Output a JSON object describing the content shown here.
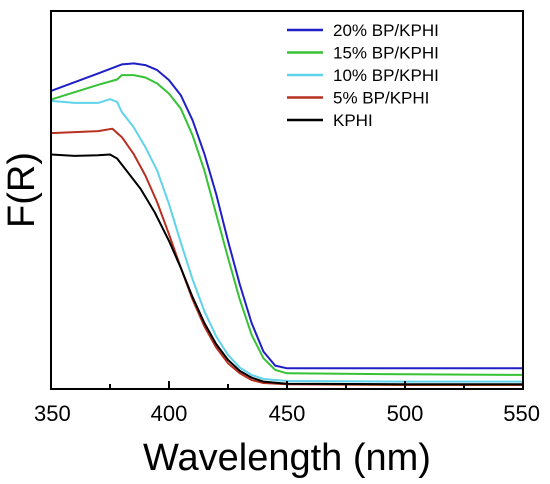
{
  "chart_data": {
    "type": "line",
    "xlabel": "Wavelength (nm)",
    "ylabel": "F(R)",
    "xlim": [
      350,
      550
    ],
    "ylim": [
      0,
      1
    ],
    "x_ticks": [
      "350",
      "400",
      "450",
      "500",
      "550"
    ],
    "y_ticks_shown": false,
    "grid": false,
    "legend_position": "top-right",
    "series": [
      {
        "name": "20% BP/KPHI",
        "color": "#1f1fc8",
        "points": [
          [
            350,
            0.878
          ],
          [
            360,
            0.904
          ],
          [
            370,
            0.93
          ],
          [
            380,
            0.957
          ],
          [
            385,
            0.96
          ],
          [
            390,
            0.955
          ],
          [
            395,
            0.94
          ],
          [
            400,
            0.91
          ],
          [
            405,
            0.865
          ],
          [
            410,
            0.79
          ],
          [
            415,
            0.69
          ],
          [
            420,
            0.57
          ],
          [
            425,
            0.43
          ],
          [
            430,
            0.3
          ],
          [
            435,
            0.185
          ],
          [
            440,
            0.1
          ],
          [
            445,
            0.058
          ],
          [
            450,
            0.05
          ],
          [
            500,
            0.05
          ],
          [
            550,
            0.05
          ]
        ]
      },
      {
        "name": "15% BP/KPHI",
        "color": "#35c235",
        "points": [
          [
            350,
            0.852
          ],
          [
            360,
            0.874
          ],
          [
            370,
            0.896
          ],
          [
            378,
            0.912
          ],
          [
            380,
            0.925
          ],
          [
            385,
            0.925
          ],
          [
            390,
            0.918
          ],
          [
            395,
            0.9
          ],
          [
            400,
            0.87
          ],
          [
            405,
            0.825
          ],
          [
            410,
            0.745
          ],
          [
            415,
            0.64
          ],
          [
            420,
            0.51
          ],
          [
            425,
            0.38
          ],
          [
            430,
            0.255
          ],
          [
            435,
            0.15
          ],
          [
            440,
            0.08
          ],
          [
            445,
            0.045
          ],
          [
            450,
            0.035
          ],
          [
            500,
            0.032
          ],
          [
            550,
            0.03
          ]
        ]
      },
      {
        "name": "10% BP/KPHI",
        "color": "#5fd3ea",
        "points": [
          [
            350,
            0.848
          ],
          [
            360,
            0.842
          ],
          [
            370,
            0.842
          ],
          [
            375,
            0.853
          ],
          [
            378,
            0.845
          ],
          [
            380,
            0.815
          ],
          [
            385,
            0.77
          ],
          [
            390,
            0.71
          ],
          [
            395,
            0.64
          ],
          [
            400,
            0.54
          ],
          [
            405,
            0.425
          ],
          [
            410,
            0.315
          ],
          [
            415,
            0.22
          ],
          [
            420,
            0.145
          ],
          [
            425,
            0.09
          ],
          [
            430,
            0.052
          ],
          [
            435,
            0.03
          ],
          [
            440,
            0.018
          ],
          [
            450,
            0.012
          ],
          [
            500,
            0.01
          ],
          [
            550,
            0.01
          ]
        ]
      },
      {
        "name": "5% BP/KPHI",
        "color": "#b83020",
        "points": [
          [
            350,
            0.752
          ],
          [
            360,
            0.755
          ],
          [
            370,
            0.758
          ],
          [
            376,
            0.765
          ],
          [
            380,
            0.74
          ],
          [
            385,
            0.69
          ],
          [
            390,
            0.625
          ],
          [
            395,
            0.545
          ],
          [
            400,
            0.45
          ],
          [
            405,
            0.35
          ],
          [
            410,
            0.255
          ],
          [
            415,
            0.175
          ],
          [
            420,
            0.112
          ],
          [
            425,
            0.065
          ],
          [
            430,
            0.035
          ],
          [
            435,
            0.015
          ],
          [
            440,
            0.006
          ],
          [
            450,
            0.002
          ],
          [
            500,
            0
          ],
          [
            550,
            0
          ]
        ]
      },
      {
        "name": "KPHI",
        "color": "#000000",
        "points": [
          [
            350,
            0.688
          ],
          [
            360,
            0.684
          ],
          [
            370,
            0.686
          ],
          [
            375,
            0.688
          ],
          [
            378,
            0.676
          ],
          [
            382,
            0.64
          ],
          [
            388,
            0.585
          ],
          [
            394,
            0.515
          ],
          [
            400,
            0.43
          ],
          [
            405,
            0.35
          ],
          [
            410,
            0.262
          ],
          [
            415,
            0.185
          ],
          [
            420,
            0.122
          ],
          [
            425,
            0.075
          ],
          [
            430,
            0.042
          ],
          [
            435,
            0.022
          ],
          [
            440,
            0.01
          ],
          [
            450,
            0.004
          ],
          [
            500,
            0.002
          ],
          [
            550,
            0.002
          ]
        ]
      }
    ]
  }
}
